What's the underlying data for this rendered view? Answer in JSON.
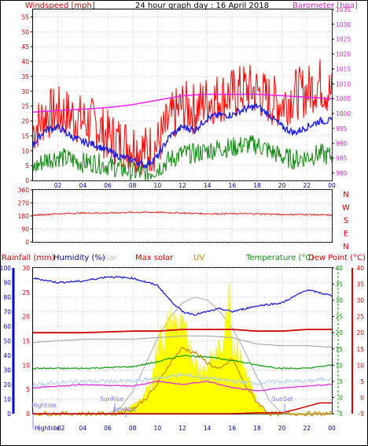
{
  "header": {
    "title": "24 hour graph day : 16 April 2018",
    "left_label": "Windspeed [mph]",
    "right_label": "Barometer [hpa]"
  },
  "direction": {
    "compass": [
      "N",
      "W",
      "S",
      "E",
      "N"
    ]
  },
  "lower": {
    "labels": {
      "rainfall": "Rainfall (mm)",
      "humidity": "Humidity (%)",
      "solar": "Solar",
      "max_solar": "Max solar",
      "uv": "UV",
      "temperature": "Temperature (°C)",
      "dewpoint": "Dew Point (°C)"
    },
    "annotations": {
      "hightide_1": "Hightide",
      "sunrise": "SunRise",
      "lowtide": "Lowtide",
      "sunset": "SunSet",
      "hightide_2": "Hightide"
    }
  },
  "colors": {
    "wind": "#ff0000",
    "wind_avg": "#2222dd",
    "wind_green": "#118811",
    "barometer": "#ee22ee",
    "direction": "#dd2222",
    "humidity": "#2222cc",
    "temperature": "#119911",
    "dewpoint": "#dd0000",
    "rain": "#cc0000",
    "solar": "#ffff00",
    "max_solar": "#cc0000",
    "uv": "#cc8800"
  },
  "chart_data": [
    {
      "type": "line",
      "name": "wind-barometer",
      "x_ticks": [
        "02",
        "04",
        "06",
        "08",
        "10",
        "12",
        "14",
        "16",
        "18",
        "20",
        "22",
        "00"
      ],
      "y_left_ticks": [
        0,
        5,
        10,
        15,
        20,
        25,
        30,
        35,
        40,
        45,
        50,
        55
      ],
      "y_right_ticks": [
        980,
        985,
        990,
        995,
        1000,
        1005,
        1010,
        1015,
        1020,
        1025,
        1030,
        1035
      ],
      "ylim_left": [
        0,
        57.5
      ],
      "ylim_right": [
        977.5,
        1035
      ],
      "series": [
        {
          "hours": [
            0,
            1,
            2,
            3,
            4,
            5,
            6,
            7,
            8,
            9,
            10,
            11,
            12,
            13,
            14,
            15,
            16,
            17,
            18,
            19,
            20,
            21,
            22,
            23,
            24
          ],
          "values": [
            17,
            22,
            23,
            22,
            20,
            19,
            15,
            13,
            12,
            10,
            12,
            20,
            25,
            24,
            27,
            28,
            29,
            31,
            30,
            27,
            26,
            29,
            30,
            33,
            29
          ]
        },
        {
          "hours": [
            0,
            1,
            2,
            3,
            4,
            5,
            6,
            7,
            8,
            9,
            10,
            11,
            12,
            13,
            14,
            15,
            16,
            17,
            18,
            19,
            20,
            21,
            22,
            23,
            24
          ],
          "values": [
            12,
            17,
            18,
            15,
            13,
            12,
            10,
            8,
            7,
            5,
            8,
            15,
            18,
            17,
            21,
            22,
            22,
            24,
            25,
            22,
            18,
            16,
            18,
            20,
            20
          ]
        },
        {
          "hours": [
            0,
            1,
            2,
            3,
            4,
            5,
            6,
            7,
            8,
            9,
            10,
            11,
            12,
            13,
            14,
            15,
            16,
            17,
            18,
            19,
            20,
            21,
            22,
            23,
            24
          ],
          "values": [
            4,
            7,
            8,
            7,
            6,
            6,
            5,
            4,
            3,
            2,
            4,
            7,
            9,
            9,
            10,
            11,
            11,
            12,
            12,
            10,
            8,
            7,
            8,
            9,
            8
          ]
        },
        {
          "hours": [
            0,
            2,
            4,
            6,
            8,
            10,
            12,
            14,
            16,
            18,
            20,
            22,
            24
          ],
          "values": [
            1000.5,
            1001,
            1001.5,
            1002,
            1003,
            1004.5,
            1006,
            1006.5,
            1006.5,
            1006.5,
            1006,
            1005.5,
            1005
          ]
        }
      ]
    },
    {
      "type": "line",
      "name": "wind-direction",
      "y_ticks": [
        0,
        90,
        180,
        270,
        360
      ],
      "ylim": [
        0,
        360
      ],
      "series": [
        {
          "hours": [
            0,
            2,
            4,
            6,
            8,
            10,
            12,
            14,
            16,
            18,
            20,
            22,
            24
          ],
          "values": [
            185,
            195,
            200,
            200,
            205,
            205,
            200,
            195,
            195,
            195,
            190,
            190,
            185
          ]
        }
      ]
    },
    {
      "type": "area",
      "name": "rain-humidity-solar-temperature",
      "x_ticks": [
        "02",
        "04",
        "06",
        "08",
        "10",
        "12",
        "14",
        "16",
        "18",
        "20",
        "22",
        "00"
      ],
      "y_humidity_ticks": [
        0,
        10,
        20,
        30,
        40,
        50,
        60,
        70,
        80,
        90,
        100
      ],
      "y_rain_ticks": [
        0,
        5,
        10,
        15,
        20,
        25,
        30
      ],
      "y_temp_ticks": [
        -5,
        0,
        5,
        10,
        15,
        20,
        25,
        30,
        35,
        40
      ],
      "ylim_humidity": [
        0,
        100
      ],
      "ylim_rain": [
        0,
        30
      ],
      "ylim_temp": [
        -5,
        40
      ],
      "series": [
        {
          "hours": [
            0,
            2,
            4,
            6,
            8,
            10,
            11,
            12,
            13,
            14,
            15,
            16,
            18,
            20,
            22,
            24
          ],
          "values": [
            93,
            90,
            91,
            94,
            93,
            88,
            78,
            70,
            68,
            70,
            72,
            70,
            74,
            76,
            85,
            81
          ]
        },
        {
          "hours": [
            0,
            4,
            8,
            10,
            12,
            14,
            16,
            18,
            20,
            22,
            24
          ],
          "values": [
            20,
            20,
            20.5,
            20.5,
            21,
            21,
            21,
            20.5,
            20.5,
            21,
            21
          ]
        },
        {
          "hours": [
            0,
            4,
            8,
            10,
            12,
            14,
            16,
            18,
            20,
            22,
            24
          ],
          "values": [
            17,
            18,
            18,
            18.5,
            19,
            19,
            18.5,
            16.5,
            16,
            16,
            15.5
          ]
        },
        {
          "hours": [
            0,
            4,
            8,
            10,
            12,
            14,
            16,
            18,
            20,
            22,
            24
          ],
          "values": [
            9,
            9,
            9.5,
            11,
            13,
            12.5,
            11.5,
            10,
            9,
            9,
            10
          ]
        },
        {
          "hours": [
            0,
            4,
            8,
            10,
            12,
            14,
            16,
            18,
            20,
            22,
            24
          ],
          "values": [
            4,
            5,
            5,
            6,
            7,
            6,
            5,
            4.5,
            5,
            5,
            6
          ]
        },
        {
          "hours": [
            0,
            4,
            8,
            10,
            12,
            14,
            16,
            18,
            20,
            22,
            24
          ],
          "values": [
            3,
            4,
            3.5,
            5,
            4,
            5,
            3,
            2,
            3,
            3.5,
            4
          ]
        },
        {
          "hours": [
            0,
            6,
            7,
            8,
            9,
            10,
            11,
            12,
            13,
            14,
            15,
            16,
            17,
            18,
            19,
            20,
            24
          ],
          "values": [
            0,
            0,
            40,
            150,
            330,
            520,
            660,
            760,
            800,
            780,
            700,
            590,
            430,
            250,
            90,
            0,
            0
          ]
        },
        {
          "hours": [
            0,
            6.5,
            7.5,
            8.5,
            9.5,
            10,
            10.5,
            11,
            11.5,
            12,
            12.5,
            13,
            13.5,
            14,
            14.5,
            15,
            15.5,
            15.8,
            16,
            16.5,
            17,
            17.5,
            18,
            18.5,
            19,
            24
          ],
          "values": [
            0,
            0,
            30,
            80,
            200,
            480,
            520,
            600,
            620,
            560,
            480,
            350,
            300,
            320,
            380,
            420,
            600,
            930,
            450,
            420,
            300,
            180,
            80,
            30,
            0,
            0
          ]
        },
        {
          "hours": [
            0,
            6.5,
            8,
            9,
            10,
            11,
            12,
            13,
            14,
            15,
            16,
            17,
            18,
            19,
            24
          ],
          "values": [
            0,
            0,
            0.3,
            1,
            2,
            3.5,
            4.5,
            4.2,
            3.5,
            3,
            3.8,
            2,
            0.8,
            0,
            0
          ]
        },
        {
          "hours": [
            0,
            14,
            16,
            18,
            20,
            21,
            22,
            23,
            24
          ],
          "values": [
            0,
            0,
            0,
            0.2,
            0.2,
            0.8,
            1.5,
            2.2,
            2.2
          ]
        }
      ]
    }
  ]
}
